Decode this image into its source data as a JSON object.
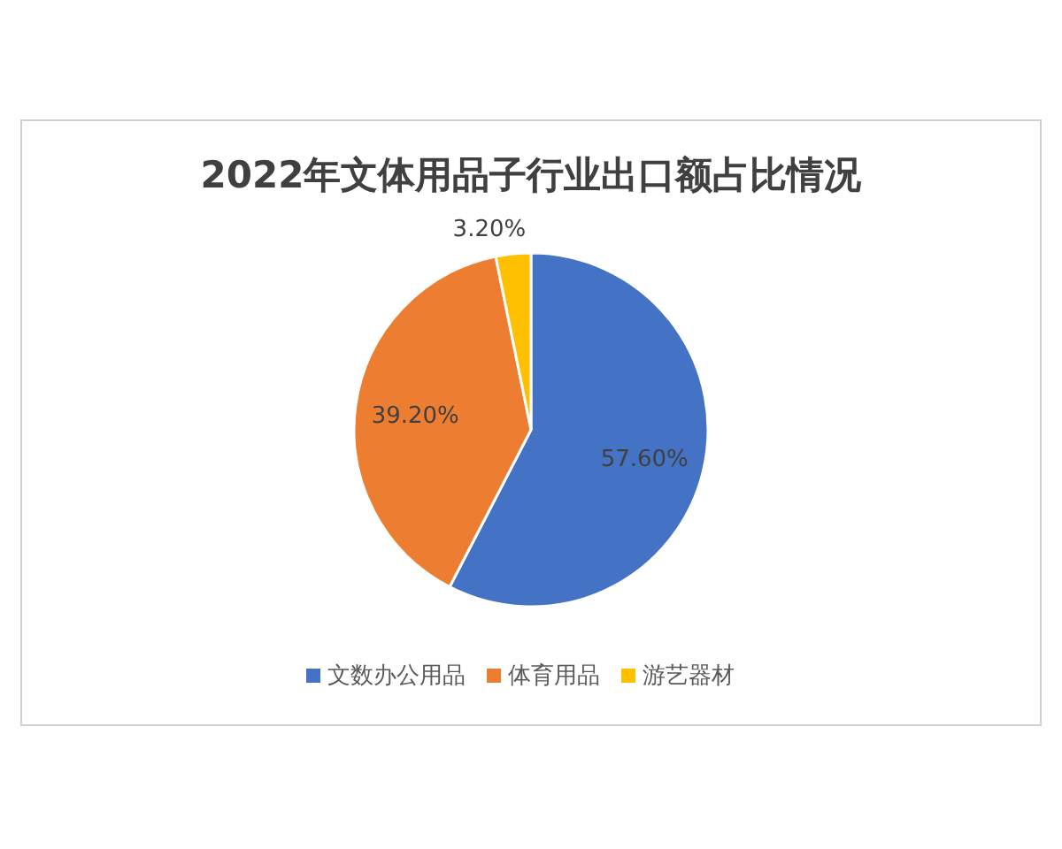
{
  "chart_data": {
    "type": "pie",
    "title": "2022年文体用品子行业出口额占比情况",
    "categories": [
      "文数办公用品",
      "体育用品",
      "游艺器材"
    ],
    "values": [
      57.6,
      39.2,
      3.2
    ],
    "colors": [
      "#4472c4",
      "#ed7d31",
      "#ffc000"
    ],
    "value_labels": [
      "57.60%",
      "39.20%",
      "3.20%"
    ],
    "legend": "bottom"
  }
}
